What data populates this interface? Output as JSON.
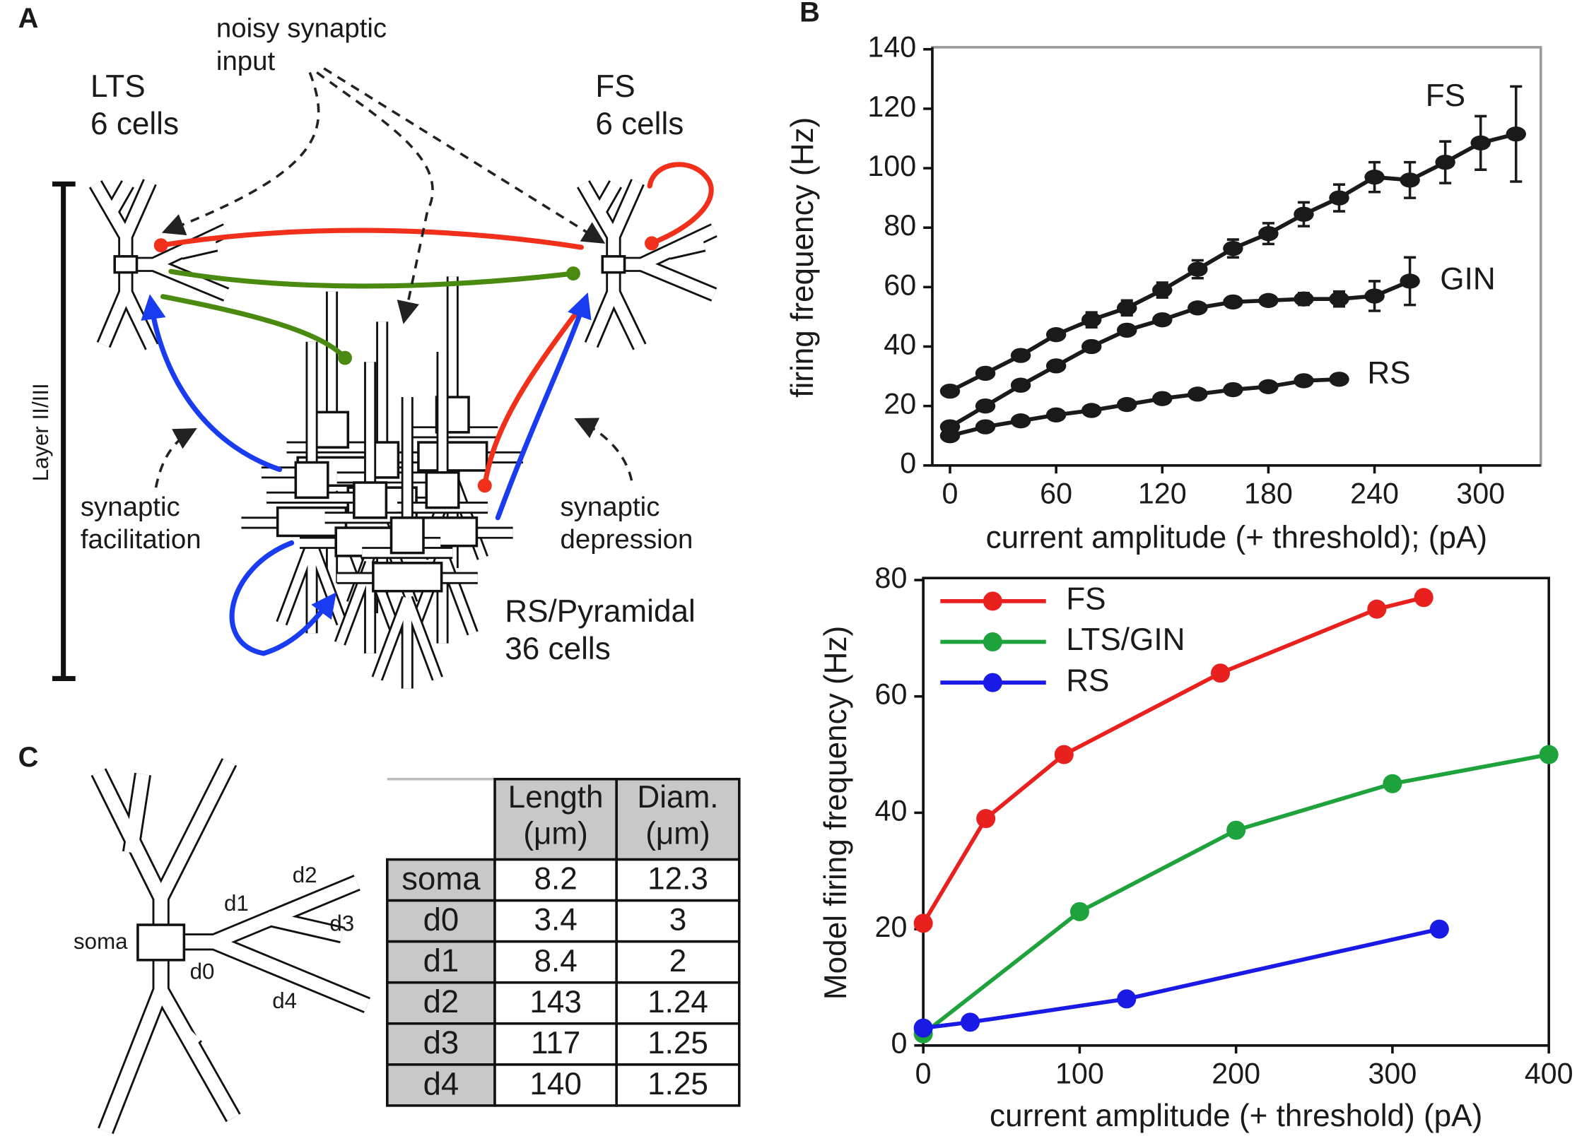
{
  "panel_labels": [
    "A",
    "B",
    "C"
  ],
  "panel_a": {
    "input_label": [
      "noisy synaptic",
      "input"
    ],
    "lts": [
      "LTS",
      "6 cells"
    ],
    "fs": [
      "FS",
      "6 cells"
    ],
    "layer": "Layer II/III",
    "facilitation": [
      "synaptic",
      "facilitation"
    ],
    "depression": [
      "synaptic",
      "depression"
    ],
    "rs": [
      "RS/Pyramidal",
      "36 cells"
    ]
  },
  "chart_data": [
    {
      "type": "line",
      "x_label": "current amplitude (+ threshold); (pA)",
      "y_label": "firing frequency (Hz)",
      "xlim": [
        -10,
        334
      ],
      "ylim": [
        0,
        140
      ],
      "xticks": [
        0,
        60,
        120,
        180,
        240,
        300
      ],
      "yticks": [
        0,
        20,
        40,
        60,
        80,
        100,
        120,
        140
      ],
      "series": [
        {
          "name": "FS",
          "color": "#1a1a1a",
          "x": [
            0,
            20,
            40,
            60,
            80,
            100,
            120,
            140,
            160,
            180,
            200,
            220,
            240,
            260,
            280,
            300,
            320
          ],
          "values": [
            25,
            31,
            37,
            44,
            49,
            53,
            59,
            66,
            73,
            78,
            84.5,
            90,
            97,
            96,
            102,
            108.5,
            111.5
          ],
          "errors": [
            1.5,
            1.5,
            1.5,
            1.5,
            2.5,
            2.5,
            2.5,
            3,
            3,
            3.5,
            4,
            4.5,
            5,
            6,
            7,
            9,
            16
          ]
        },
        {
          "name": "GIN",
          "color": "#1a1a1a",
          "x": [
            0,
            20,
            40,
            60,
            80,
            100,
            120,
            140,
            160,
            180,
            200,
            220,
            240,
            260
          ],
          "values": [
            13,
            20,
            27,
            33.5,
            40,
            45.5,
            49,
            53,
            55,
            55.5,
            56,
            56,
            57,
            62
          ],
          "errors": [
            1.5,
            1,
            1,
            1,
            1,
            1,
            1,
            1,
            1,
            1.5,
            2,
            2.5,
            5,
            8
          ]
        },
        {
          "name": "RS",
          "color": "#1a1a1a",
          "x": [
            0,
            20,
            40,
            60,
            80,
            100,
            120,
            140,
            160,
            180,
            200,
            220
          ],
          "values": [
            10,
            13,
            15,
            17,
            18.5,
            20.5,
            22.5,
            24,
            25.5,
            26.5,
            28.5,
            29
          ],
          "errors": [
            1,
            1,
            1,
            1,
            1,
            1,
            1,
            1,
            1,
            1,
            1,
            1.5
          ]
        }
      ]
    },
    {
      "type": "line",
      "x_label": "current amplitude (+ threshold) (pA)",
      "y_label": "Model firing frequency (Hz)",
      "xlim": [
        0,
        400
      ],
      "ylim": [
        0,
        80
      ],
      "xticks": [
        0,
        100,
        200,
        300,
        400
      ],
      "yticks": [
        0,
        20,
        40,
        60,
        80
      ],
      "legend": "upper left",
      "series": [
        {
          "name": "FS",
          "color": "#e8201e",
          "x": [
            0,
            40,
            90,
            190,
            290,
            320
          ],
          "values": [
            21,
            39,
            50,
            64,
            75,
            77
          ]
        },
        {
          "name": "LTS/GIN",
          "color": "#1ea33c",
          "x": [
            0,
            100,
            200,
            300,
            400
          ],
          "values": [
            2,
            23,
            37,
            45,
            50
          ]
        },
        {
          "name": "RS",
          "color": "#1a1ae6",
          "x": [
            0,
            30,
            130,
            330
          ],
          "values": [
            3,
            4,
            8,
            20
          ]
        }
      ]
    }
  ],
  "panel_c": {
    "table": {
      "header": [
        [
          "Length",
          "(μm)"
        ],
        [
          "Diam.",
          "(μm)"
        ]
      ],
      "rows": [
        [
          "soma",
          8.2,
          12.3
        ],
        [
          "d0",
          3.4,
          3
        ],
        [
          "d1",
          8.4,
          2
        ],
        [
          "d2",
          143,
          1.24
        ],
        [
          "d3",
          117,
          1.25
        ],
        [
          "d4",
          140,
          1.25
        ]
      ]
    }
  }
}
